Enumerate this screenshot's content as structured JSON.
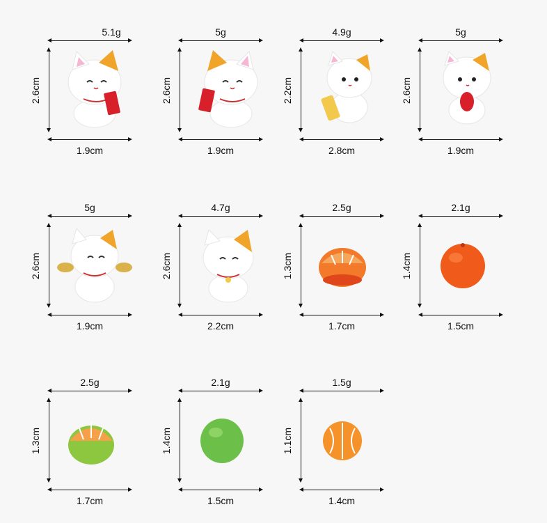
{
  "items": [
    {
      "weight": "5.1g",
      "height": "2.6cm",
      "width": "1.9cm",
      "kind": "cat-redcard-left",
      "hat": "#f0a52a"
    },
    {
      "weight": "5g",
      "height": "2.6cm",
      "width": "1.9cm",
      "kind": "cat-redcard-right",
      "hat": "#f0a52a"
    },
    {
      "weight": "4.9g",
      "height": "2.2cm",
      "width": "2.8cm",
      "kind": "cat-goldbar",
      "hat": "#f0a52a"
    },
    {
      "weight": "5g",
      "height": "2.6cm",
      "width": "1.9cm",
      "kind": "cat-fish",
      "hat": "#f0a52a"
    },
    {
      "weight": "5g",
      "height": "2.6cm",
      "width": "1.9cm",
      "kind": "cat-ingots",
      "hat": "#f0a52a"
    },
    {
      "weight": "4.7g",
      "height": "2.6cm",
      "width": "2.2cm",
      "kind": "cat-plain",
      "hat": "#f0a52a"
    },
    {
      "weight": "2.5g",
      "height": "1.3cm",
      "width": "1.7cm",
      "kind": "orange-peeled",
      "color": "#f27a2a"
    },
    {
      "weight": "2.1g",
      "height": "1.4cm",
      "width": "1.5cm",
      "kind": "orange-whole",
      "color": "#f05a1a"
    },
    {
      "weight": "2.5g",
      "height": "1.3cm",
      "width": "1.7cm",
      "kind": "orange-green-peeled",
      "color": "#8dc63f"
    },
    {
      "weight": "2.1g",
      "height": "1.4cm",
      "width": "1.5cm",
      "kind": "lime-whole",
      "color": "#6cc04a"
    },
    {
      "weight": "1.5g",
      "height": "1.1cm",
      "width": "1.4cm",
      "kind": "orange-segments",
      "color": "#f5922a"
    }
  ]
}
